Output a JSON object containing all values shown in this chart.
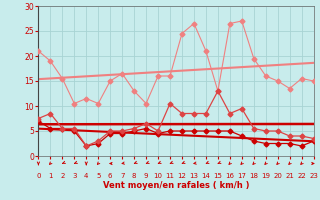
{
  "x": [
    0,
    1,
    2,
    3,
    4,
    5,
    6,
    7,
    8,
    9,
    10,
    11,
    12,
    13,
    14,
    15,
    16,
    17,
    18,
    19,
    20,
    21,
    22,
    23
  ],
  "rafales": [
    21,
    19,
    15.5,
    10.5,
    11.5,
    10.5,
    15,
    16.5,
    13,
    10.5,
    16,
    16,
    24.5,
    26.5,
    21,
    13,
    26.5,
    27,
    19.5,
    16,
    15,
    13.5,
    15.5,
    15
  ],
  "vent_moyen": [
    7.5,
    8.5,
    5.5,
    5.5,
    2.0,
    3.0,
    5.0,
    5.0,
    5.5,
    6.5,
    5.0,
    10.5,
    8.5,
    8.5,
    8.5,
    13.0,
    8.5,
    9.5,
    5.5,
    5.0,
    5.0,
    4.0,
    4.0,
    3.5
  ],
  "vent_min": [
    7.0,
    5.5,
    5.5,
    5.0,
    2.0,
    2.5,
    4.5,
    4.5,
    5.0,
    5.5,
    4.5,
    5.0,
    5.0,
    5.0,
    5.0,
    5.0,
    5.0,
    4.0,
    3.0,
    2.5,
    2.5,
    2.5,
    2.0,
    3.0
  ],
  "color_light": "#f08080",
  "color_dark": "#cc0000",
  "color_mid": "#dd4444",
  "background_color": "#c8ecec",
  "grid_color": "#a8d4d4",
  "xlabel": "Vent moyen/en rafales ( km/h )",
  "xlim": [
    0,
    23
  ],
  "ylim": [
    0,
    30
  ],
  "yticks": [
    0,
    5,
    10,
    15,
    20,
    25,
    30
  ],
  "xticks": [
    0,
    1,
    2,
    3,
    4,
    5,
    6,
    7,
    8,
    9,
    10,
    11,
    12,
    13,
    14,
    15,
    16,
    17,
    18,
    19,
    20,
    21,
    22,
    23
  ],
  "wind_dirs": [
    180,
    202,
    225,
    225,
    180,
    202,
    270,
    247,
    225,
    225,
    225,
    225,
    225,
    247,
    225,
    225,
    202,
    202,
    202,
    202,
    202,
    202,
    202,
    90
  ]
}
